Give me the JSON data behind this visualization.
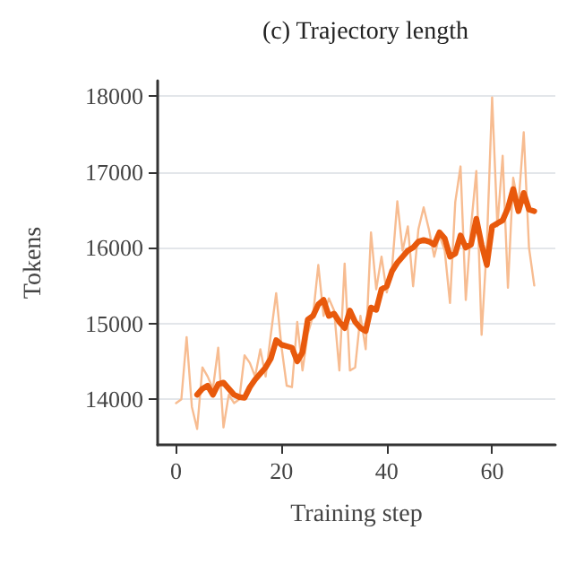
{
  "chart_data": {
    "type": "line",
    "title": "(c) Trajectory length",
    "xlabel": "Training step",
    "ylabel": "Tokens",
    "x": [
      0,
      1,
      2,
      3,
      4,
      5,
      6,
      7,
      8,
      9,
      10,
      11,
      12,
      13,
      14,
      15,
      16,
      17,
      18,
      19,
      20,
      21,
      22,
      23,
      24,
      25,
      26,
      27,
      28,
      29,
      30,
      31,
      32,
      33,
      34,
      35,
      36,
      37,
      38,
      39,
      40,
      41,
      42,
      43,
      44,
      45,
      46,
      47,
      48,
      49,
      50,
      51,
      52,
      53,
      54,
      55,
      56,
      57,
      58,
      59,
      60,
      61,
      62,
      63,
      64,
      65,
      66,
      67,
      68
    ],
    "series": [
      {
        "color": "#f7bc91",
        "values": [
          13950,
          14000,
          14820,
          13900,
          13610,
          14420,
          14300,
          14140,
          14680,
          13630,
          14060,
          13950,
          14000,
          14580,
          14480,
          14300,
          14660,
          14300,
          14860,
          15400,
          14700,
          14180,
          14160,
          15020,
          14380,
          14860,
          15100,
          15770,
          15100,
          15330,
          15170,
          14380,
          15790,
          14380,
          14420,
          15100,
          14660,
          16200,
          15450,
          15880,
          15410,
          15730,
          16610,
          15960,
          16280,
          15490,
          16240,
          16530,
          16240,
          15880,
          16160,
          15960,
          15270,
          16600,
          17070,
          15310,
          16280,
          17010,
          14850,
          16040,
          17980,
          16280,
          17210,
          15470,
          16920,
          16560,
          17520,
          16000,
          15500
        ]
      },
      {
        "color": "#e8590c",
        "values": [
          null,
          null,
          null,
          null,
          14060,
          14140,
          14180,
          14060,
          14200,
          14220,
          14140,
          14060,
          14030,
          14020,
          14160,
          14260,
          14340,
          14420,
          14540,
          14780,
          14720,
          14700,
          14680,
          14500,
          14620,
          15050,
          15100,
          15250,
          15310,
          15100,
          15130,
          15020,
          14940,
          15170,
          15020,
          14940,
          14900,
          15210,
          15180,
          15450,
          15490,
          15690,
          15800,
          15880,
          15960,
          16000,
          16080,
          16100,
          16080,
          16040,
          16200,
          16120,
          15880,
          15920,
          16160,
          16000,
          16040,
          16380,
          16040,
          15770,
          16280,
          16320,
          16360,
          16520,
          16770,
          16480,
          16720,
          16500,
          16480
        ]
      }
    ],
    "xlim": [
      -3.5,
      72
    ],
    "ylim": [
      13400,
      18200
    ],
    "xticks": [
      0,
      20,
      40,
      60
    ],
    "yticks": [
      14000,
      15000,
      16000,
      17000,
      18000
    ],
    "grid": "y",
    "marker": "none",
    "line_style": "solid"
  }
}
